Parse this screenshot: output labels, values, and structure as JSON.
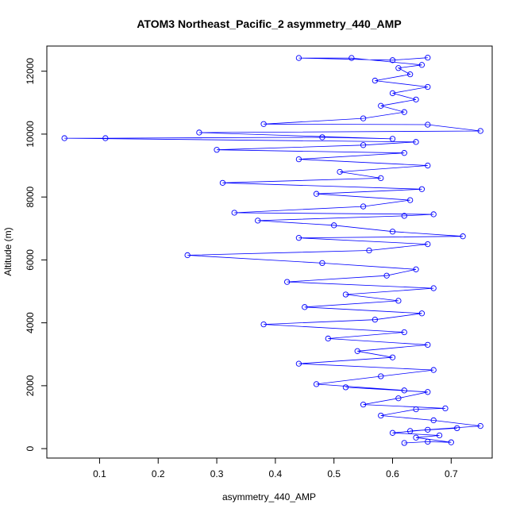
{
  "chart_data": {
    "type": "line",
    "title": "ATOM3 Northeast_Pacific_2 asymmetry_440_AMP",
    "xlabel": "asymmetry_440_AMP",
    "ylabel": "Altitude (m)",
    "xlim": [
      0.01,
      0.77
    ],
    "ylim": [
      -300,
      12800
    ],
    "xticks": [
      0.1,
      0.2,
      0.3,
      0.4,
      0.5,
      0.6,
      0.7
    ],
    "xtick_labels": [
      "0.1",
      "0.2",
      "0.3",
      "0.4",
      "0.5",
      "0.6",
      "0.7"
    ],
    "yticks": [
      0,
      2000,
      4000,
      6000,
      8000,
      10000,
      12000
    ],
    "ytick_labels": [
      "0",
      "2000",
      "4000",
      "6000",
      "8000",
      "10000",
      "12000"
    ],
    "grid": false,
    "legend": "none",
    "marker": "open-circle",
    "color": "#0000ff",
    "series": [
      {
        "points": [
          [
            0.62,
            180
          ],
          [
            0.66,
            220
          ],
          [
            0.7,
            200
          ],
          [
            0.64,
            350
          ],
          [
            0.68,
            420
          ],
          [
            0.6,
            500
          ],
          [
            0.66,
            600
          ],
          [
            0.71,
            650
          ],
          [
            0.63,
            560
          ],
          [
            0.75,
            720
          ],
          [
            0.67,
            900
          ],
          [
            0.58,
            1050
          ],
          [
            0.64,
            1250
          ],
          [
            0.69,
            1280
          ],
          [
            0.55,
            1400
          ],
          [
            0.61,
            1600
          ],
          [
            0.66,
            1800
          ],
          [
            0.52,
            1950
          ],
          [
            0.62,
            1850
          ],
          [
            0.47,
            2050
          ],
          [
            0.58,
            2300
          ],
          [
            0.67,
            2500
          ],
          [
            0.44,
            2700
          ],
          [
            0.6,
            2900
          ],
          [
            0.54,
            3100
          ],
          [
            0.66,
            3300
          ],
          [
            0.49,
            3500
          ],
          [
            0.62,
            3700
          ],
          [
            0.38,
            3950
          ],
          [
            0.57,
            4100
          ],
          [
            0.65,
            4300
          ],
          [
            0.45,
            4500
          ],
          [
            0.61,
            4700
          ],
          [
            0.52,
            4900
          ],
          [
            0.67,
            5100
          ],
          [
            0.42,
            5300
          ],
          [
            0.59,
            5500
          ],
          [
            0.64,
            5700
          ],
          [
            0.48,
            5900
          ],
          [
            0.25,
            6150
          ],
          [
            0.56,
            6300
          ],
          [
            0.66,
            6500
          ],
          [
            0.44,
            6700
          ],
          [
            0.72,
            6750
          ],
          [
            0.6,
            6900
          ],
          [
            0.5,
            7100
          ],
          [
            0.37,
            7250
          ],
          [
            0.62,
            7400
          ],
          [
            0.67,
            7450
          ],
          [
            0.33,
            7500
          ],
          [
            0.55,
            7700
          ],
          [
            0.63,
            7900
          ],
          [
            0.47,
            8100
          ],
          [
            0.65,
            8250
          ],
          [
            0.31,
            8450
          ],
          [
            0.58,
            8600
          ],
          [
            0.51,
            8800
          ],
          [
            0.66,
            9000
          ],
          [
            0.44,
            9200
          ],
          [
            0.62,
            9400
          ],
          [
            0.3,
            9500
          ],
          [
            0.55,
            9650
          ],
          [
            0.64,
            9750
          ],
          [
            0.04,
            9870
          ],
          [
            0.11,
            9870
          ],
          [
            0.48,
            9900
          ],
          [
            0.6,
            9850
          ],
          [
            0.27,
            10050
          ],
          [
            0.75,
            10100
          ],
          [
            0.66,
            10300
          ],
          [
            0.38,
            10320
          ],
          [
            0.55,
            10500
          ],
          [
            0.62,
            10700
          ],
          [
            0.58,
            10900
          ],
          [
            0.64,
            11100
          ],
          [
            0.6,
            11300
          ],
          [
            0.66,
            11500
          ],
          [
            0.57,
            11700
          ],
          [
            0.63,
            11900
          ],
          [
            0.61,
            12100
          ],
          [
            0.65,
            12200
          ],
          [
            0.53,
            12420
          ],
          [
            0.44,
            12420
          ],
          [
            0.6,
            12350
          ],
          [
            0.66,
            12430
          ]
        ]
      }
    ]
  }
}
